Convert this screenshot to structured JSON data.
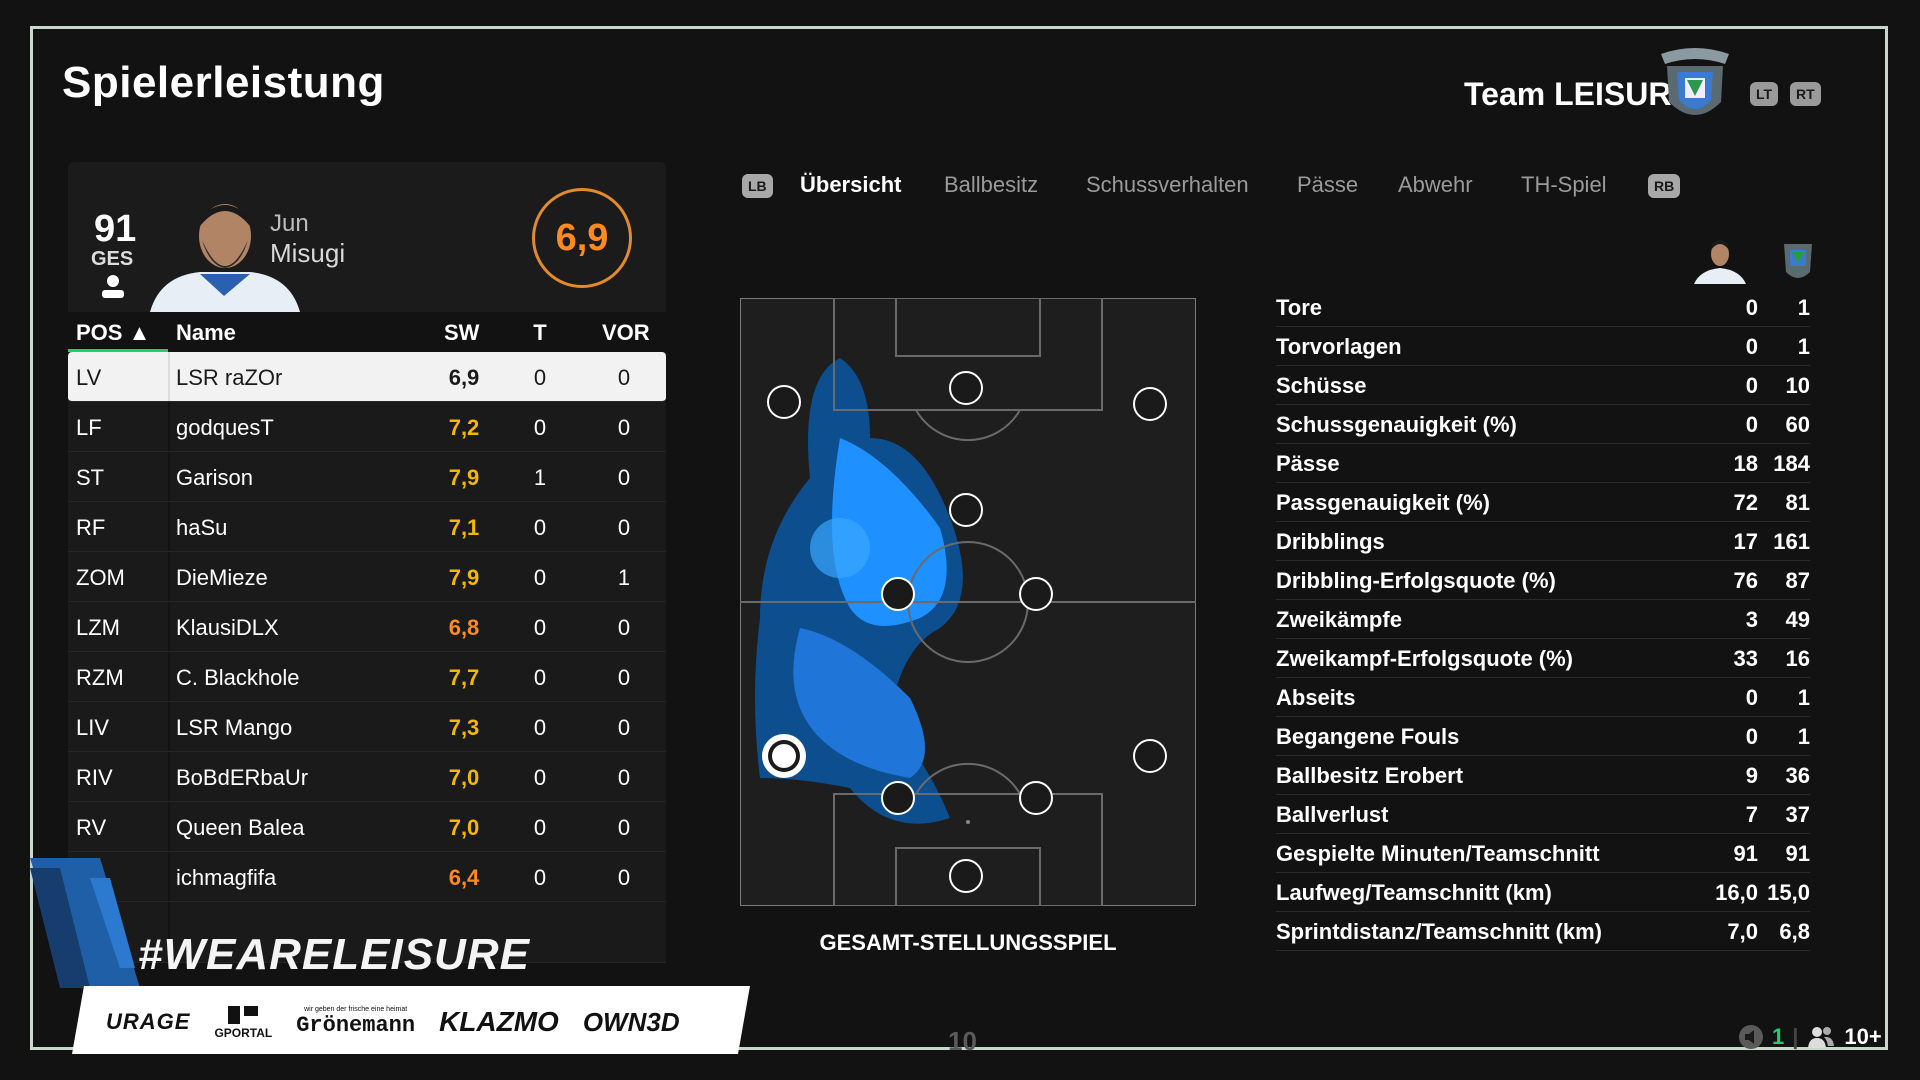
{
  "page": {
    "title": "Spielerleistung",
    "team": "Team LEISURE",
    "lt_label": "LT",
    "rt_label": "RT"
  },
  "player": {
    "overall": "91",
    "overall_label": "GES",
    "first_name": "Jun",
    "last_name": "Misugi",
    "rating": "6,9"
  },
  "table": {
    "headers": {
      "pos": "POS ▲",
      "name": "Name",
      "sw": "SW",
      "t": "T",
      "vor": "VOR"
    },
    "rows": [
      {
        "pos": "LV",
        "name": "LSR raZOr",
        "sw": "6,9",
        "t": "0",
        "vor": "0"
      },
      {
        "pos": "LF",
        "name": "godquesT",
        "sw": "7,2",
        "t": "0",
        "vor": "0"
      },
      {
        "pos": "ST",
        "name": "Garison",
        "sw": "7,9",
        "t": "1",
        "vor": "0"
      },
      {
        "pos": "RF",
        "name": "haSu",
        "sw": "7,1",
        "t": "0",
        "vor": "0"
      },
      {
        "pos": "ZOM",
        "name": "DieMieze",
        "sw": "7,9",
        "t": "0",
        "vor": "1"
      },
      {
        "pos": "LZM",
        "name": "KlausiDLX",
        "sw": "6,8",
        "t": "0",
        "vor": "0"
      },
      {
        "pos": "RZM",
        "name": "C. Blackhole",
        "sw": "7,7",
        "t": "0",
        "vor": "0"
      },
      {
        "pos": "LIV",
        "name": "LSR Mango",
        "sw": "7,3",
        "t": "0",
        "vor": "0"
      },
      {
        "pos": "RIV",
        "name": "BoBdERbaUr",
        "sw": "7,0",
        "t": "0",
        "vor": "0"
      },
      {
        "pos": "RV",
        "name": "Queen Balea",
        "sw": "7,0",
        "t": "0",
        "vor": "0"
      },
      {
        "pos": "",
        "name": "ichmagfifa",
        "sw": "6,4",
        "t": "0",
        "vor": "0"
      }
    ]
  },
  "tabs": {
    "lb": "LB",
    "rb": "RB",
    "items": [
      "Übersicht",
      "Ballbesitz",
      "Schussverhalten",
      "Pässe",
      "Abwehr",
      "TH-Spiel"
    ],
    "active": "Übersicht"
  },
  "heatmap": {
    "label": "GESAMT-STELLUNGSSPIEL"
  },
  "stats": [
    {
      "label": "Tore",
      "player": "0",
      "team": "1"
    },
    {
      "label": "Torvorlagen",
      "player": "0",
      "team": "1"
    },
    {
      "label": "Schüsse",
      "player": "0",
      "team": "10"
    },
    {
      "label": "Schussgenauigkeit (%)",
      "player": "0",
      "team": "60"
    },
    {
      "label": "Pässe",
      "player": "18",
      "team": "184"
    },
    {
      "label": "Passgenauigkeit (%)",
      "player": "72",
      "team": "81"
    },
    {
      "label": "Dribblings",
      "player": "17",
      "team": "161"
    },
    {
      "label": "Dribbling-Erfolgsquote (%)",
      "player": "76",
      "team": "87"
    },
    {
      "label": "Zweikämpfe",
      "player": "3",
      "team": "49"
    },
    {
      "label": "Zweikampf-Erfolgsquote (%)",
      "player": "33",
      "team": "16"
    },
    {
      "label": "Abseits",
      "player": "0",
      "team": "1"
    },
    {
      "label": "Begangene Fouls",
      "player": "0",
      "team": "1"
    },
    {
      "label": "Ballbesitz Erobert",
      "player": "9",
      "team": "36"
    },
    {
      "label": "Ballverlust",
      "player": "7",
      "team": "37"
    },
    {
      "label": "Gespielte Minuten/Teamschnitt",
      "player": "91",
      "team": "91"
    },
    {
      "label": "Laufweg/Teamschnitt (km)",
      "player": "16,0",
      "team": "15,0"
    },
    {
      "label": "Sprintdistanz/Teamschnitt (km)",
      "player": "7,0",
      "team": "6,8"
    }
  ],
  "promo": {
    "hashtag": "#WEARELEISURE",
    "sponsors": [
      "URAGE",
      "GPORTAL",
      "Grönemann",
      "KLAZMO",
      "OWN3D"
    ],
    "gronemann_tagline": "wir geben der frische eine heimat"
  },
  "footer": {
    "page": "10",
    "count1": "1",
    "count2": "10+"
  },
  "colors": {
    "accent_green": "#1fd16a",
    "rating_orange": "#ff8a1f",
    "rating_yellow": "#f5b800",
    "heat_blue": "#1e90ff"
  }
}
